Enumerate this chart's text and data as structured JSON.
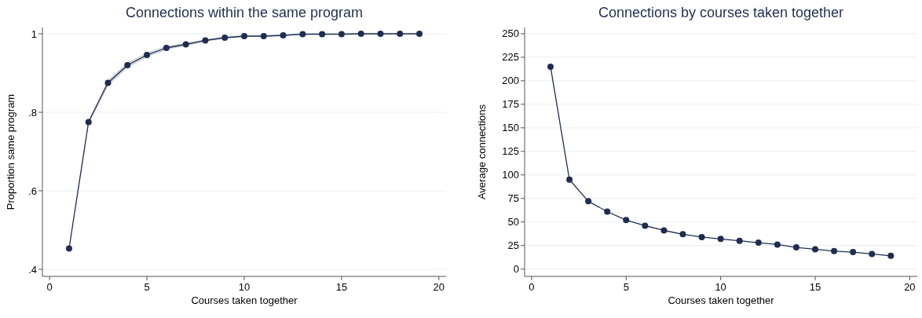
{
  "chart_data": [
    {
      "type": "line",
      "title": "Connections within the same program",
      "xlabel": "Courses taken together",
      "ylabel": "Proportion same program",
      "x": [
        1,
        2,
        3,
        4,
        5,
        6,
        7,
        8,
        9,
        10,
        11,
        12,
        13,
        14,
        15,
        16,
        17,
        18,
        19
      ],
      "series": [
        {
          "color": "#1f2d50",
          "values": [
            0.453,
            0.775,
            0.875,
            0.92,
            0.946,
            0.964,
            0.973,
            0.983,
            0.99,
            0.994,
            0.994,
            0.996,
            0.999,
            0.999,
            0.999,
            1.0,
            1.0,
            1.0,
            1.0
          ],
          "lower": [
            0.45,
            0.769,
            0.867,
            0.913,
            0.94,
            0.959,
            0.969,
            0.98,
            0.987,
            0.992,
            0.992,
            0.994,
            0.998,
            0.998,
            0.998,
            0.999,
            0.999,
            0.999,
            0.999
          ],
          "upper": [
            0.456,
            0.781,
            0.883,
            0.927,
            0.952,
            0.969,
            0.977,
            0.986,
            0.993,
            0.996,
            0.996,
            0.998,
            1.0,
            1.0,
            1.0,
            1.001,
            1.001,
            1.001,
            1.001
          ]
        }
      ],
      "xlim": [
        -0.37,
        20.37
      ],
      "xticks": [
        0,
        5,
        10,
        15,
        20
      ],
      "ylim": [
        0.382,
        1.016
      ],
      "yticks": [
        {
          "value": 0.4,
          "label": ".4"
        },
        {
          "value": 0.6,
          "label": ".6"
        },
        {
          "value": 0.8,
          "label": ".8"
        },
        1
      ],
      "grid": "y",
      "marker": "circle",
      "line_style": "solid"
    },
    {
      "type": "line",
      "title": "Connections by courses taken together",
      "xlabel": "Courses taken together",
      "ylabel": "Average connections",
      "x": [
        1,
        2,
        3,
        4,
        5,
        6,
        7,
        8,
        9,
        10,
        11,
        12,
        13,
        14,
        15,
        16,
        17,
        18,
        19
      ],
      "series": [
        {
          "color": "#1f2d50",
          "values": [
            215,
            95,
            72,
            61,
            52,
            46,
            41,
            37,
            34,
            32,
            30,
            28,
            26,
            23,
            21,
            19,
            18,
            16,
            14
          ]
        }
      ],
      "xlim": [
        -0.37,
        20.4
      ],
      "xticks": [
        0,
        5,
        10,
        15,
        20
      ],
      "ylim": [
        -7.8,
        256.6
      ],
      "yticks": [
        0,
        25,
        50,
        75,
        100,
        125,
        150,
        175,
        200,
        225,
        250
      ],
      "grid": "y",
      "marker": "circle",
      "line_style": "solid"
    }
  ]
}
